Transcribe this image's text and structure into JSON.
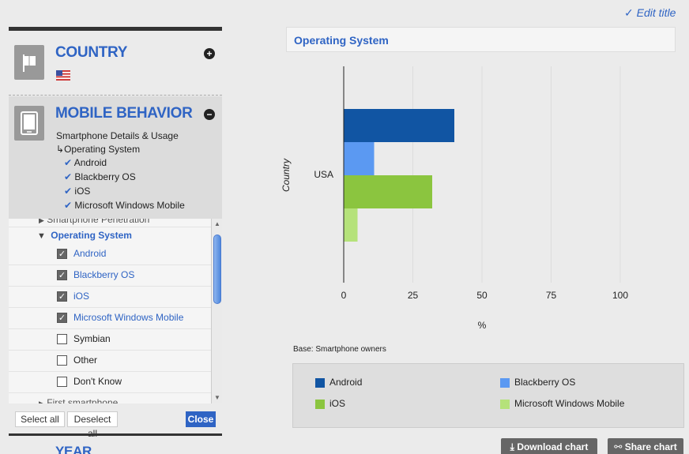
{
  "sidebar": {
    "country": {
      "title": "COUNTRY",
      "toggle": "+"
    },
    "mobile": {
      "title": "MOBILE BEHAVIOR",
      "toggle": "−",
      "summary": {
        "category": "Smartphone Details & Usage",
        "subcategory": "Operating System",
        "items": [
          "Android",
          "Blackberry OS",
          "iOS",
          "Microsoft Windows Mobile"
        ]
      }
    },
    "list": {
      "above_cut": "Smartphone Penetration",
      "group": "Operating System",
      "items": [
        {
          "label": "Android",
          "checked": true
        },
        {
          "label": "Blackberry OS",
          "checked": true
        },
        {
          "label": "iOS",
          "checked": true
        },
        {
          "label": "Microsoft Windows Mobile",
          "checked": true
        },
        {
          "label": "Symbian",
          "checked": false
        },
        {
          "label": "Other",
          "checked": false
        },
        {
          "label": "Don't Know",
          "checked": false
        }
      ],
      "below_cut": "First smartphone"
    },
    "buttons": {
      "select_all": "Select all",
      "deselect_all": "Deselect all",
      "close": "Close"
    },
    "year": {
      "title": "YEAR"
    }
  },
  "header": {
    "edit_title": "Edit title"
  },
  "chart_data": {
    "type": "bar",
    "orientation": "horizontal",
    "title": "Operating System",
    "categories": [
      "USA"
    ],
    "series": [
      {
        "name": "Android",
        "values": [
          40
        ],
        "color": "#1155a3"
      },
      {
        "name": "Blackberry OS",
        "values": [
          11
        ],
        "color": "#5b99f2"
      },
      {
        "name": "iOS",
        "values": [
          32
        ],
        "color": "#8bc53f"
      },
      {
        "name": "Microsoft Windows Mobile",
        "values": [
          5
        ],
        "color": "#b5e27a"
      }
    ],
    "xlabel": "%",
    "ylabel": "Country",
    "xlim": [
      0,
      100
    ],
    "xticks": [
      "0",
      "25",
      "50",
      "75",
      "100"
    ],
    "grid": true,
    "legend": "bottom",
    "base_note": "Base: Smartphone owners"
  },
  "actions": {
    "download": "Download chart",
    "share": "Share chart"
  }
}
